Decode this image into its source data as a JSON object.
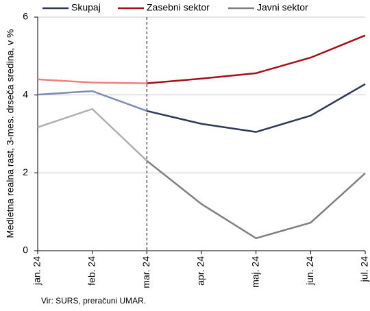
{
  "chart_data": {
    "type": "line",
    "y_label": "Medletna realna rast, 3-mes. drseča sredina, v %",
    "source": "Vir: SURS, preračuni UMAR.",
    "categories": [
      "jan. 24",
      "feb. 24",
      "mar. 24",
      "apr. 24",
      "maj. 24",
      "jun. 24",
      "jul. 24"
    ],
    "series": [
      {
        "name": "Skupaj",
        "color": "#2e3a55",
        "light_color": "#7c8db3",
        "values": [
          4.01,
          4.1,
          3.59,
          3.26,
          3.05,
          3.47,
          4.28
        ]
      },
      {
        "name": "Zasebni sektor",
        "color": "#a50f15",
        "light_color": "#f08080",
        "values": [
          4.4,
          4.32,
          4.3,
          4.42,
          4.56,
          4.96,
          5.53
        ]
      },
      {
        "name": "Javni sektor",
        "color": "#808080",
        "light_color": "#b0b0b0",
        "values": [
          3.17,
          3.64,
          2.31,
          1.2,
          0.32,
          0.72,
          1.99
        ]
      }
    ],
    "divider_index": 2,
    "ylim": [
      0,
      6
    ],
    "yticks": [
      0,
      2,
      4,
      6
    ],
    "grid": true
  }
}
